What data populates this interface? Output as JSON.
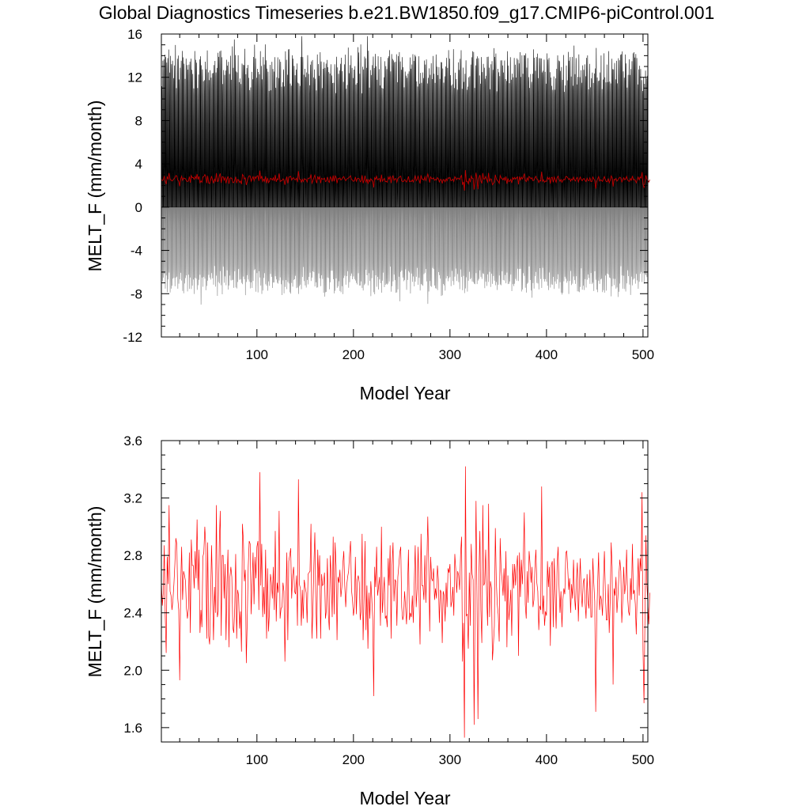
{
  "title": "Global Diagnostics Timeseries b.e21.BW1850.f09_g17.CMIP6-piControl.001",
  "colors": {
    "monthly": "#000000",
    "monthly_negative": "#7f7f7f",
    "annual": "#ff0000",
    "annual_top": "#c00000"
  },
  "chart_data": [
    {
      "type": "line",
      "xlabel": "Model Year",
      "ylabel": "MELT_F (mm/month)",
      "xlim": [
        1,
        505
      ],
      "ylim": [
        -12,
        16
      ],
      "x_ticks": [
        100,
        200,
        300,
        400,
        500
      ],
      "y_ticks": [
        -12,
        -8,
        -4,
        0,
        4,
        8,
        12,
        16
      ],
      "y_tick_labels": [
        "-12",
        "-8",
        "-4",
        "0",
        "4",
        "8",
        "12",
        "16"
      ],
      "series": [
        {
          "resolution": "monthly",
          "color": "#000000",
          "negative_color": "#7f7f7f",
          "n_years": 505,
          "annual_cycle_min": -7.0,
          "annual_cycle_max": 13.5,
          "overall_min": -9.6,
          "overall_max": 15.8
        },
        {
          "resolution": "annual",
          "color": "#c00000",
          "mean": 2.6,
          "min": 1.53,
          "max": 3.42
        }
      ],
      "grid": false
    },
    {
      "type": "line",
      "xlabel": "Model Year",
      "ylabel": "MELT_F (mm/month)",
      "xlim": [
        1,
        505
      ],
      "ylim": [
        1.5,
        3.6
      ],
      "x_ticks": [
        100,
        200,
        300,
        400,
        500
      ],
      "y_ticks": [
        1.6,
        2.0,
        2.4,
        2.8,
        3.2,
        3.6
      ],
      "y_tick_labels": [
        "1.6",
        "2.0",
        "2.4",
        "2.8",
        "3.2",
        "3.6"
      ],
      "series": [
        {
          "resolution": "annual",
          "color": "#ff0000",
          "x_start": 1,
          "x_step": 1,
          "values": [
            2.62,
            2.45,
            2.54,
            2.87,
            2.38,
            2.12,
            2.79,
            2.6,
            3.15,
            2.55,
            2.52,
            2.42,
            2.49,
            2.6,
            2.74,
            2.92,
            2.88,
            2.5,
            2.42,
            1.93,
            2.58,
            2.86,
            2.49,
            2.69,
            2.66,
            2.62,
            2.43,
            2.36,
            2.43,
            2.82,
            2.26,
            2.91,
            2.73,
            2.73,
            2.57,
            2.83,
            2.64,
            3.05,
            2.56,
            2.84,
            2.26,
            2.42,
            2.3,
            2.79,
            2.82,
            3.0,
            2.87,
            2.22,
            2.89,
            2.24,
            2.18,
            2.48,
            2.87,
            2.56,
            2.21,
            2.58,
            2.4,
            3.15,
            2.37,
            2.41,
            2.89,
            3.11,
            2.24,
            2.8,
            2.8,
            2.5,
            2.74,
            2.21,
            2.61,
            2.84,
            2.16,
            2.65,
            2.72,
            2.65,
            2.3,
            2.26,
            2.43,
            2.81,
            2.22,
            2.56,
            2.52,
            2.29,
            2.41,
            2.13,
            3.02,
            2.9,
            2.62,
            2.7,
            2.05,
            2.36,
            2.72,
            2.9,
            2.88,
            2.39,
            2.6,
            2.82,
            2.46,
            2.79,
            2.64,
            2.86,
            2.9,
            2.42,
            3.38,
            2.59,
            2.88,
            2.37,
            2.58,
            2.39,
            2.84,
            2.22,
            2.71,
            2.27,
            2.41,
            2.67,
            2.61,
            2.5,
            2.72,
            2.42,
            2.97,
            2.34,
            2.61,
            2.54,
            3.11,
            2.36,
            2.43,
            2.44,
            2.61,
            2.55,
            2.06,
            2.48,
            2.82,
            2.21,
            2.76,
            2.8,
            2.85,
            2.5,
            2.66,
            2.72,
            2.55,
            2.53,
            2.66,
            2.31,
            3.33,
            2.6,
            2.57,
            2.31,
            2.56,
            2.36,
            2.63,
            2.58,
            2.54,
            2.33,
            2.67,
            2.68,
            2.69,
            3.02,
            2.22,
            2.42,
            2.73,
            2.96,
            2.49,
            2.22,
            2.84,
            2.59,
            2.8,
            2.22,
            2.67,
            2.59,
            2.6,
            2.68,
            2.36,
            2.42,
            2.78,
            2.39,
            2.28,
            2.8,
            2.64,
            2.37,
            2.93,
            2.39,
            2.89,
            2.73,
            2.21,
            2.65,
            2.61,
            2.7,
            2.51,
            2.58,
            2.74,
            2.83,
            2.59,
            2.44,
            2.59,
            2.65,
            2.69,
            2.81,
            2.9,
            2.56,
            2.49,
            2.38,
            2.44,
            2.79,
            2.39,
            2.63,
            2.66,
            2.61,
            2.35,
            2.42,
            2.95,
            2.21,
            2.5,
            2.9,
            2.28,
            2.59,
            2.15,
            2.54,
            2.36,
            2.62,
            2.5,
            2.35,
            1.82,
            2.72,
            2.58,
            2.86,
            2.52,
            2.58,
            2.65,
            2.31,
            3.0,
            2.4,
            2.53,
            2.65,
            2.36,
            2.38,
            2.3,
            2.78,
            2.59,
            2.87,
            2.22,
            2.73,
            2.89,
            2.48,
            2.63,
            2.62,
            2.31,
            2.65,
            2.73,
            2.82,
            2.86,
            2.44,
            2.35,
            2.38,
            2.55,
            2.44,
            2.32,
            2.56,
            2.84,
            2.35,
            2.4,
            2.37,
            2.52,
            2.33,
            2.61,
            2.87,
            2.44,
            2.57,
            2.86,
            2.51,
            2.18,
            2.95,
            2.59,
            2.59,
            2.49,
            2.8,
            2.47,
            2.72,
            3.07,
            2.74,
            2.27,
            2.79,
            2.64,
            2.62,
            2.71,
            2.49,
            2.57,
            2.5,
            2.73,
            2.63,
            2.33,
            2.56,
            2.54,
            2.19,
            2.55,
            2.52,
            2.34,
            2.61,
            2.44,
            2.71,
            2.68,
            2.74,
            2.44,
            2.48,
            2.58,
            2.38,
            2.81,
            2.7,
            2.54,
            2.69,
            2.66,
            2.56,
            2.81,
            2.93,
            2.06,
            2.33,
            1.53,
            3.42,
            2.38,
            2.39,
            2.15,
            2.68,
            2.31,
            2.88,
            2.67,
            2.63,
            1.62,
            2.5,
            3.18,
            2.49,
            1.66,
            2.66,
            2.97,
            2.42,
            2.19,
            3.15,
            2.59,
            2.61,
            2.84,
            2.52,
            2.31,
            3.16,
            2.37,
            2.62,
            2.57,
            2.07,
            2.18,
            2.31,
            2.99,
            2.62,
            2.46,
            2.39,
            2.2,
            2.92,
            2.7,
            2.63,
            2.52,
            2.71,
            2.48,
            2.83,
            2.16,
            2.66,
            2.35,
            2.43,
            2.56,
            2.24,
            2.74,
            2.57,
            2.74,
            2.59,
            2.72,
            2.8,
            2.1,
            2.82,
            2.51,
            2.77,
            2.6,
            2.79,
            3.1,
            2.46,
            2.36,
            2.69,
            2.47,
            2.83,
            2.74,
            2.61,
            2.72,
            2.44,
            2.49,
            2.71,
            2.84,
            2.61,
            2.55,
            2.28,
            2.45,
            2.42,
            3.28,
            2.39,
            2.52,
            2.31,
            2.41,
            2.38,
            2.76,
            2.58,
            2.72,
            2.17,
            2.73,
            2.76,
            2.3,
            2.78,
            2.53,
            2.29,
            2.73,
            2.86,
            2.58,
            2.4,
            2.55,
            2.3,
            2.49,
            2.57,
            2.53,
            2.82,
            2.83,
            2.71,
            2.56,
            2.64,
            2.4,
            2.6,
            2.5,
            2.77,
            2.52,
            2.42,
            2.63,
            2.75,
            2.34,
            2.58,
            2.78,
            2.54,
            2.44,
            2.61,
            2.64,
            2.47,
            2.36,
            2.67,
            2.48,
            2.43,
            2.7,
            2.37,
            2.37,
            2.78,
            2.61,
            2.48,
            1.71,
            2.34,
            2.6,
            2.82,
            2.42,
            2.52,
            2.49,
            2.38,
            2.62,
            2.83,
            2.54,
            2.35,
            2.35,
            2.6,
            2.26,
            2.48,
            2.89,
            2.72,
            1.9,
            2.57,
            2.52,
            2.65,
            2.4,
            2.51,
            2.66,
            2.77,
            2.69,
            2.33,
            2.49,
            2.72,
            2.53,
            2.6,
            2.84,
            2.52,
            2.41,
            2.38,
            2.64,
            2.49,
            2.88,
            2.53,
            2.56,
            2.46,
            2.25,
            2.56,
            2.78,
            2.52,
            2.78,
            2.69,
            3.24,
            2.14,
            1.77,
            2.36,
            2.94,
            2.6,
            2.46,
            2.32,
            2.54
          ]
        }
      ],
      "grid": false
    }
  ]
}
